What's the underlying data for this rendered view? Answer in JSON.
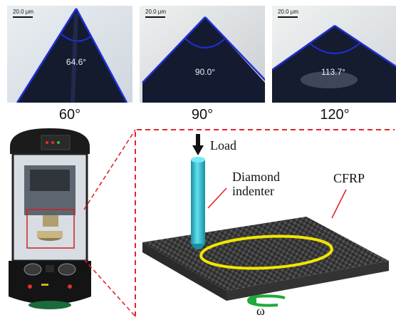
{
  "panels": [
    {
      "scale_label": "20.0 μm",
      "measured_angle": "64.6°",
      "caption": "60°"
    },
    {
      "scale_label": "20.0 μm",
      "measured_angle": "90.0°",
      "caption": "90°"
    },
    {
      "scale_label": "20.0 μm",
      "measured_angle": "113.7°",
      "caption": "120°"
    }
  ],
  "schematic": {
    "load_label": "Load",
    "indenter_label_line1": "Diamond",
    "indenter_label_line2": "indenter",
    "material_label": "CFRP",
    "rotation_label": "ω"
  },
  "colors": {
    "angle_lines": "#1f2fd6",
    "dashed_frame": "#e0262a",
    "indenter": "#2fc8d8",
    "track": "#f2e600",
    "rotation_arrow": "#1faa3a",
    "specimen": "#3a3a3a"
  }
}
